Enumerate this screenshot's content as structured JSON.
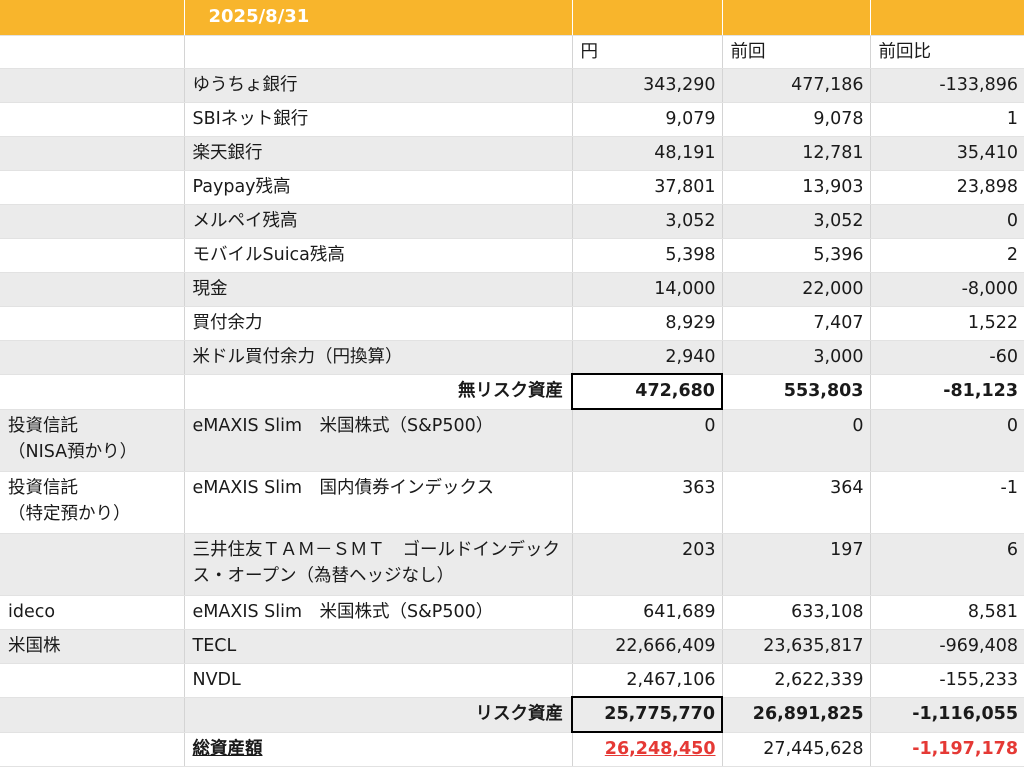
{
  "header": {
    "date": "2025/8/31"
  },
  "columns": {
    "c2": "円",
    "c3": "前回",
    "c4": "前回比"
  },
  "rows": [
    {
      "cat": "",
      "name": "ゆうちょ銀行",
      "yen": "343,290",
      "prev": "477,186",
      "diff": "-133,896"
    },
    {
      "cat": "",
      "name": "SBIネット銀行",
      "yen": "9,079",
      "prev": "9,078",
      "diff": "1"
    },
    {
      "cat": "",
      "name": "楽天銀行",
      "yen": "48,191",
      "prev": "12,781",
      "diff": "35,410"
    },
    {
      "cat": "",
      "name": "Paypay残高",
      "yen": "37,801",
      "prev": "13,903",
      "diff": "23,898"
    },
    {
      "cat": "",
      "name": "メルペイ残高",
      "yen": "3,052",
      "prev": "3,052",
      "diff": "0"
    },
    {
      "cat": "",
      "name": "モバイルSuica残高",
      "yen": "5,398",
      "prev": "5,396",
      "diff": "2"
    },
    {
      "cat": "",
      "name": "現金",
      "yen": "14,000",
      "prev": "22,000",
      "diff": "-8,000"
    },
    {
      "cat": "",
      "name": "買付余力",
      "yen": "8,929",
      "prev": "7,407",
      "diff": "1,522"
    },
    {
      "cat": "",
      "name": "米ドル買付余力（円換算）",
      "yen": "2,940",
      "prev": "3,000",
      "diff": "-60"
    }
  ],
  "riskfree": {
    "label": "無リスク資産",
    "yen": "472,680",
    "prev": "553,803",
    "diff": "-81,123"
  },
  "risk_rows": [
    {
      "cat": "投資信託\n（NISA預かり）",
      "name": "eMAXIS Slim　米国株式（S&P500）",
      "yen": "0",
      "prev": "0",
      "diff": "0"
    },
    {
      "cat": "投資信託\n（特定預かり）",
      "name": "eMAXIS Slim　国内債券インデックス",
      "yen": "363",
      "prev": "364",
      "diff": "-1"
    },
    {
      "cat": "",
      "name": "三井住友ＴＡＭ－ＳＭＴ　ゴールドインデックス・オープン（為替ヘッジなし）",
      "yen": "203",
      "prev": "197",
      "diff": "6"
    },
    {
      "cat": "ideco",
      "name": "eMAXIS Slim　米国株式（S&P500）",
      "yen": "641,689",
      "prev": "633,108",
      "diff": "8,581"
    },
    {
      "cat": "米国株",
      "name": "TECL",
      "yen": "22,666,409",
      "prev": "23,635,817",
      "diff": "-969,408"
    },
    {
      "cat": "",
      "name": "NVDL",
      "yen": "2,467,106",
      "prev": "2,622,339",
      "diff": "-155,233"
    }
  ],
  "risk": {
    "label": "リスク資産",
    "yen": "25,775,770",
    "prev": "26,891,825",
    "diff": "-1,116,055"
  },
  "total": {
    "label": "総資産額",
    "yen": "26,248,450",
    "prev": "27,445,628",
    "diff": "-1,197,178"
  },
  "colors": {
    "header_bg": "#f8b52c",
    "shade": "#ebebeb",
    "negative_total": "#e53935"
  }
}
